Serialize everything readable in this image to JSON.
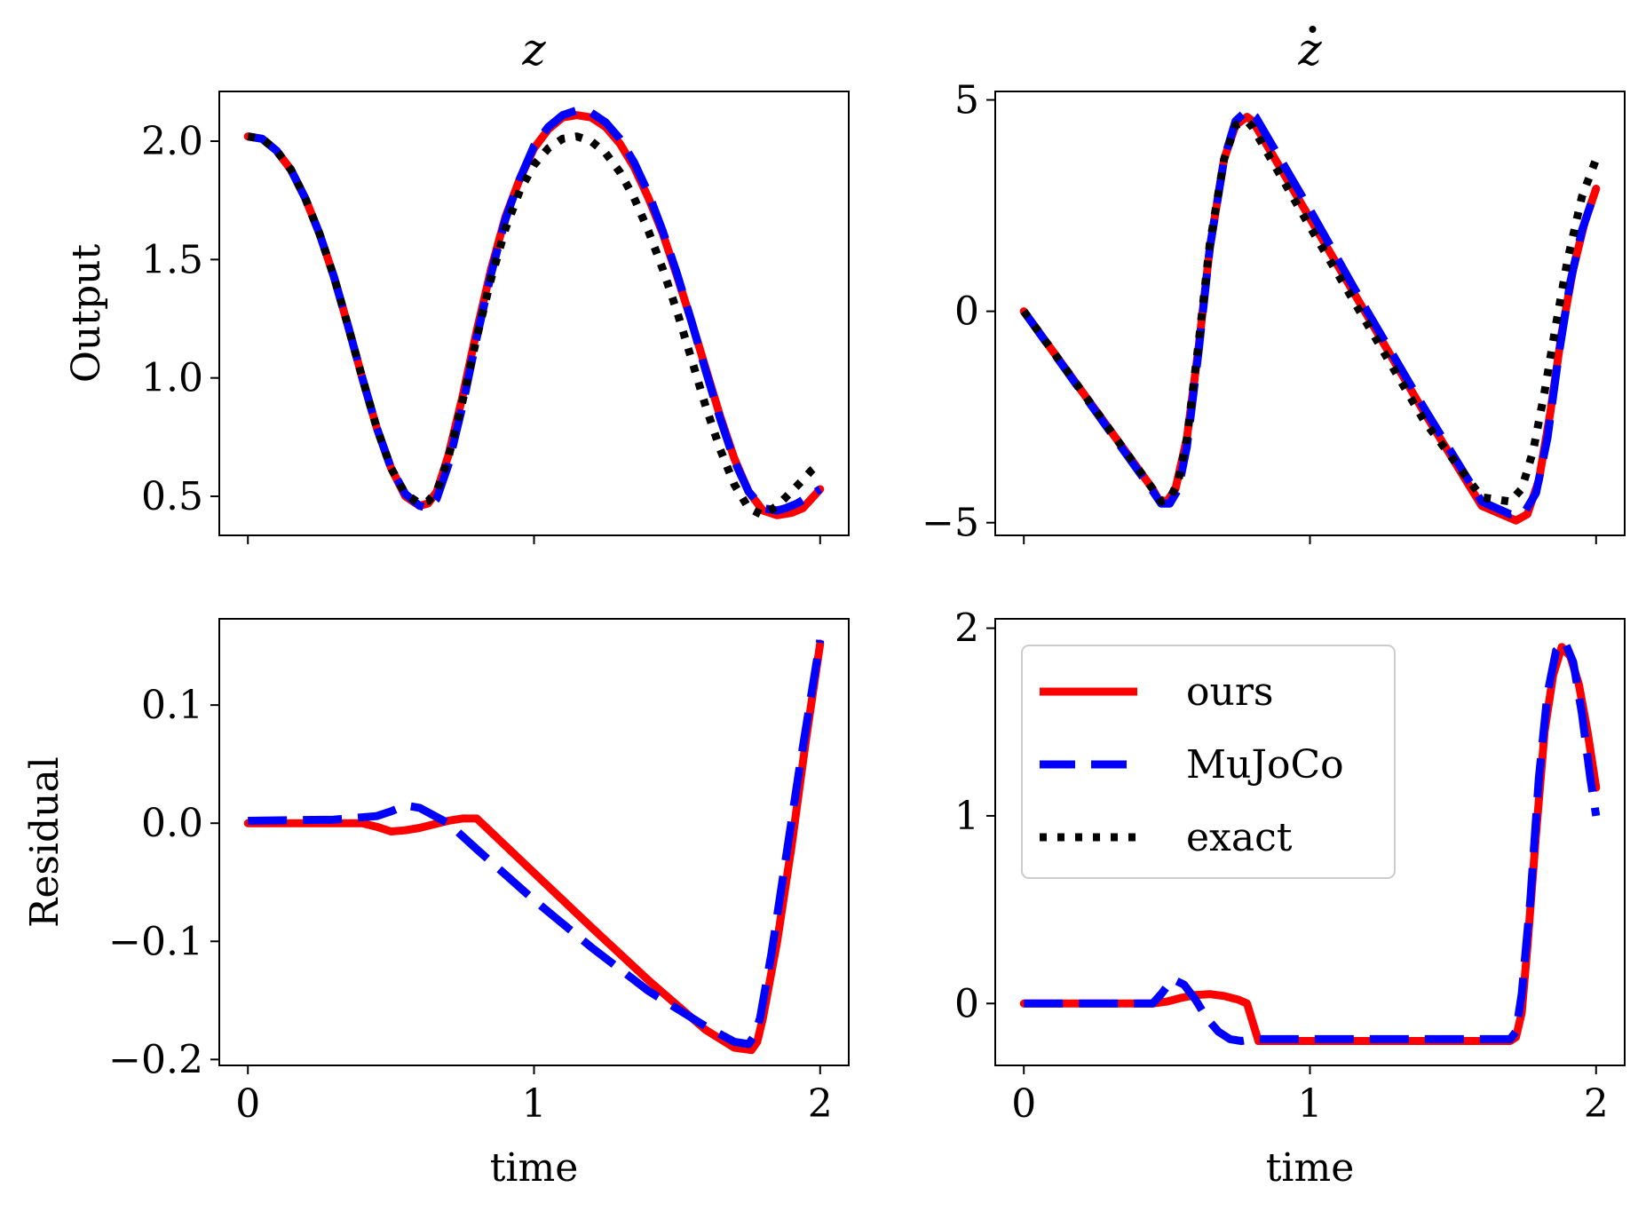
{
  "colors": {
    "ours": "#ff0000",
    "mujoco": "#0000ff",
    "exact": "#000000"
  },
  "legend": {
    "location": "upper-left",
    "panel": "br"
  },
  "chart_data": [
    {
      "id": "tl",
      "type": "line",
      "title": "z",
      "title_dot": false,
      "xlabel": "",
      "ylabel": "Output",
      "xlim": [
        -0.1,
        2.1
      ],
      "ylim": [
        0.335,
        2.21
      ],
      "xticks": [
        0,
        1,
        2
      ],
      "show_xticklabels": false,
      "yticks": [
        0.5,
        1.0,
        1.5,
        2.0
      ],
      "ytick_labels": [
        "0.5",
        "1.0",
        "1.5",
        "2.0"
      ],
      "series": [
        {
          "name": "ours",
          "style": "solid",
          "x": [
            0,
            0.05,
            0.1,
            0.15,
            0.2,
            0.25,
            0.3,
            0.35,
            0.4,
            0.45,
            0.5,
            0.55,
            0.6,
            0.63,
            0.66,
            0.7,
            0.75,
            0.8,
            0.85,
            0.9,
            0.95,
            1.0,
            1.05,
            1.1,
            1.15,
            1.2,
            1.25,
            1.3,
            1.35,
            1.4,
            1.45,
            1.5,
            1.55,
            1.6,
            1.65,
            1.7,
            1.75,
            1.8,
            1.85,
            1.9,
            1.94,
            1.97,
            2.0
          ],
          "y": [
            2.02,
            2.01,
            1.96,
            1.88,
            1.76,
            1.61,
            1.43,
            1.22,
            1.0,
            0.79,
            0.62,
            0.5,
            0.46,
            0.47,
            0.52,
            0.67,
            0.92,
            1.2,
            1.46,
            1.68,
            1.84,
            1.97,
            2.05,
            2.1,
            2.11,
            2.1,
            2.06,
            1.99,
            1.89,
            1.76,
            1.61,
            1.43,
            1.24,
            1.04,
            0.84,
            0.66,
            0.52,
            0.44,
            0.42,
            0.43,
            0.45,
            0.49,
            0.53
          ]
        },
        {
          "name": "MuJoCo",
          "style": "dashed",
          "x": [
            0,
            0.05,
            0.1,
            0.15,
            0.2,
            0.25,
            0.3,
            0.35,
            0.4,
            0.45,
            0.5,
            0.55,
            0.6,
            0.63,
            0.66,
            0.7,
            0.75,
            0.8,
            0.85,
            0.9,
            0.95,
            1.0,
            1.05,
            1.1,
            1.15,
            1.2,
            1.25,
            1.3,
            1.35,
            1.4,
            1.45,
            1.5,
            1.55,
            1.6,
            1.65,
            1.7,
            1.75,
            1.8,
            1.85,
            1.88,
            1.92,
            1.96,
            2.0
          ],
          "y": [
            2.02,
            2.01,
            1.96,
            1.88,
            1.76,
            1.61,
            1.43,
            1.22,
            1.0,
            0.79,
            0.62,
            0.51,
            0.46,
            0.45,
            0.49,
            0.63,
            0.88,
            1.17,
            1.44,
            1.67,
            1.84,
            1.98,
            2.06,
            2.11,
            2.13,
            2.12,
            2.08,
            2.01,
            1.91,
            1.78,
            1.62,
            1.44,
            1.24,
            1.03,
            0.83,
            0.65,
            0.52,
            0.45,
            0.44,
            0.45,
            0.47,
            0.5,
            0.53
          ]
        },
        {
          "name": "exact",
          "style": "dotted",
          "x": [
            0,
            0.05,
            0.1,
            0.15,
            0.2,
            0.25,
            0.3,
            0.35,
            0.4,
            0.45,
            0.5,
            0.55,
            0.6,
            0.63,
            0.66,
            0.7,
            0.75,
            0.8,
            0.85,
            0.9,
            0.95,
            1.0,
            1.05,
            1.1,
            1.15,
            1.2,
            1.25,
            1.3,
            1.35,
            1.4,
            1.45,
            1.5,
            1.55,
            1.6,
            1.65,
            1.7,
            1.75,
            1.8,
            1.85,
            1.9,
            1.94,
            1.97,
            2.0
          ],
          "y": [
            2.02,
            2.01,
            1.96,
            1.88,
            1.76,
            1.61,
            1.43,
            1.22,
            1.0,
            0.79,
            0.62,
            0.51,
            0.47,
            0.48,
            0.52,
            0.66,
            0.9,
            1.17,
            1.42,
            1.63,
            1.79,
            1.9,
            1.97,
            2.01,
            2.02,
            2.0,
            1.95,
            1.87,
            1.76,
            1.62,
            1.46,
            1.28,
            1.08,
            0.88,
            0.7,
            0.55,
            0.45,
            0.42,
            0.46,
            0.52,
            0.57,
            0.61,
            0.64
          ]
        }
      ]
    },
    {
      "id": "tr",
      "type": "line",
      "title": "z",
      "title_dot": true,
      "xlabel": "",
      "ylabel": "",
      "xlim": [
        -0.1,
        2.1
      ],
      "ylim": [
        -5.3,
        5.2
      ],
      "xticks": [
        0,
        1,
        2
      ],
      "show_xticklabels": false,
      "yticks": [
        -5,
        0,
        5
      ],
      "ytick_labels": [
        "−5",
        "0",
        "5"
      ],
      "series": [
        {
          "name": "ours",
          "style": "solid",
          "x": [
            0,
            0.45,
            0.47,
            0.5,
            0.53,
            0.57,
            0.61,
            0.65,
            0.7,
            0.74,
            0.78,
            0.8,
            1.0,
            1.2,
            1.4,
            1.6,
            1.72,
            1.76,
            1.8,
            1.84,
            1.88,
            1.92,
            1.96,
            2.0
          ],
          "y": [
            0,
            -4.2,
            -4.45,
            -4.5,
            -4.2,
            -3.0,
            -0.9,
            1.5,
            3.6,
            4.4,
            4.6,
            4.5,
            2.2,
            -0.1,
            -2.4,
            -4.6,
            -4.95,
            -4.8,
            -4.0,
            -2.4,
            -0.5,
            1.0,
            2.1,
            2.9
          ]
        },
        {
          "name": "MuJoCo",
          "style": "dashed",
          "x": [
            0,
            0.45,
            0.48,
            0.51,
            0.54,
            0.57,
            0.61,
            0.65,
            0.7,
            0.74,
            0.78,
            0.81,
            1.0,
            1.2,
            1.4,
            1.6,
            1.7,
            1.75,
            1.79,
            1.83,
            1.87,
            1.91,
            1.95,
            2.0
          ],
          "y": [
            0,
            -4.25,
            -4.55,
            -4.55,
            -4.2,
            -3.2,
            -1.0,
            1.5,
            3.6,
            4.5,
            4.75,
            4.6,
            2.4,
            0.0,
            -2.3,
            -4.5,
            -4.8,
            -4.75,
            -4.3,
            -3.0,
            -1.0,
            0.7,
            1.9,
            2.9
          ]
        },
        {
          "name": "exact",
          "style": "dotted",
          "x": [
            0,
            0.45,
            0.48,
            0.51,
            0.54,
            0.57,
            0.61,
            0.65,
            0.7,
            0.74,
            0.78,
            0.8,
            1.0,
            1.2,
            1.4,
            1.6,
            1.7,
            1.74,
            1.78,
            1.82,
            1.86,
            1.9,
            1.95,
            2.0
          ],
          "y": [
            0,
            -4.2,
            -4.5,
            -4.45,
            -4.0,
            -3.0,
            -0.8,
            1.6,
            3.6,
            4.4,
            4.5,
            4.35,
            2.0,
            -0.3,
            -2.6,
            -4.4,
            -4.5,
            -4.2,
            -3.3,
            -1.9,
            -0.3,
            1.2,
            2.7,
            3.6
          ]
        }
      ]
    },
    {
      "id": "bl",
      "type": "line",
      "title": "",
      "title_dot": false,
      "xlabel": "time",
      "ylabel": "Residual",
      "xlim": [
        -0.1,
        2.1
      ],
      "ylim": [
        -0.205,
        0.173
      ],
      "xticks": [
        0,
        1,
        2
      ],
      "show_xticklabels": true,
      "xtick_labels": [
        "0",
        "1",
        "2"
      ],
      "yticks": [
        -0.2,
        -0.1,
        0.0,
        0.1
      ],
      "ytick_labels": [
        "−0.2",
        "−0.1",
        "0.0",
        "0.1"
      ],
      "series": [
        {
          "name": "ours",
          "style": "solid",
          "x": [
            0,
            0.4,
            0.45,
            0.5,
            0.55,
            0.6,
            0.65,
            0.7,
            0.75,
            0.8,
            1.0,
            1.2,
            1.4,
            1.6,
            1.7,
            1.76,
            1.78,
            1.8,
            1.85,
            1.9,
            1.95,
            2.0
          ],
          "y": [
            0,
            0,
            -0.003,
            -0.007,
            -0.006,
            -0.004,
            -0.001,
            0.002,
            0.004,
            0.004,
            -0.042,
            -0.088,
            -0.133,
            -0.175,
            -0.19,
            -0.192,
            -0.185,
            -0.165,
            -0.1,
            -0.02,
            0.07,
            0.152
          ]
        },
        {
          "name": "MuJoCo",
          "style": "dashed",
          "x": [
            0,
            0.3,
            0.45,
            0.5,
            0.55,
            0.6,
            0.7,
            0.8,
            1.0,
            1.2,
            1.4,
            1.6,
            1.7,
            1.75,
            1.77,
            1.79,
            1.83,
            1.88,
            1.93,
            1.97,
            2.0
          ],
          "y": [
            0.002,
            0.003,
            0.006,
            0.01,
            0.015,
            0.013,
            0.0,
            -0.022,
            -0.065,
            -0.105,
            -0.142,
            -0.172,
            -0.185,
            -0.187,
            -0.18,
            -0.165,
            -0.11,
            -0.03,
            0.05,
            0.11,
            0.155
          ]
        }
      ]
    },
    {
      "id": "br",
      "type": "line",
      "title": "",
      "title_dot": false,
      "xlabel": "time",
      "ylabel": "",
      "xlim": [
        -0.1,
        2.1
      ],
      "ylim": [
        -0.33,
        2.05
      ],
      "xticks": [
        0,
        1,
        2
      ],
      "show_xticklabels": true,
      "xtick_labels": [
        "0",
        "1",
        "2"
      ],
      "yticks": [
        0,
        1,
        2
      ],
      "ytick_labels": [
        "0",
        "1",
        "2"
      ],
      "series": [
        {
          "name": "ours",
          "style": "solid",
          "x": [
            0,
            0.45,
            0.5,
            0.55,
            0.6,
            0.65,
            0.7,
            0.75,
            0.78,
            0.8,
            0.82,
            1.0,
            1.4,
            1.7,
            1.72,
            1.74,
            1.76,
            1.79,
            1.82,
            1.85,
            1.88,
            1.91,
            1.94,
            1.97,
            2.0
          ],
          "y": [
            0,
            0,
            0.01,
            0.03,
            0.045,
            0.05,
            0.04,
            0.02,
            0.0,
            -0.1,
            -0.2,
            -0.2,
            -0.2,
            -0.2,
            -0.18,
            -0.05,
            0.3,
            0.9,
            1.45,
            1.75,
            1.9,
            1.85,
            1.7,
            1.45,
            1.15
          ]
        },
        {
          "name": "MuJoCo",
          "style": "dashed",
          "x": [
            0,
            0.45,
            0.48,
            0.52,
            0.56,
            0.6,
            0.64,
            0.68,
            0.72,
            0.76,
            0.8,
            1.0,
            1.4,
            1.7,
            1.72,
            1.74,
            1.77,
            1.8,
            1.83,
            1.86,
            1.89,
            1.92,
            1.95,
            1.98,
            2.0
          ],
          "y": [
            0,
            0,
            0.05,
            0.13,
            0.1,
            0.02,
            -0.08,
            -0.15,
            -0.19,
            -0.2,
            -0.19,
            -0.19,
            -0.19,
            -0.19,
            -0.15,
            0.05,
            0.55,
            1.2,
            1.65,
            1.88,
            1.93,
            1.82,
            1.55,
            1.2,
            1.0
          ]
        }
      ]
    }
  ],
  "legend_entries": [
    {
      "key": "ours",
      "label": "ours"
    },
    {
      "key": "mujoco",
      "label": "MuJoCo"
    },
    {
      "key": "exact",
      "label": "exact"
    }
  ]
}
